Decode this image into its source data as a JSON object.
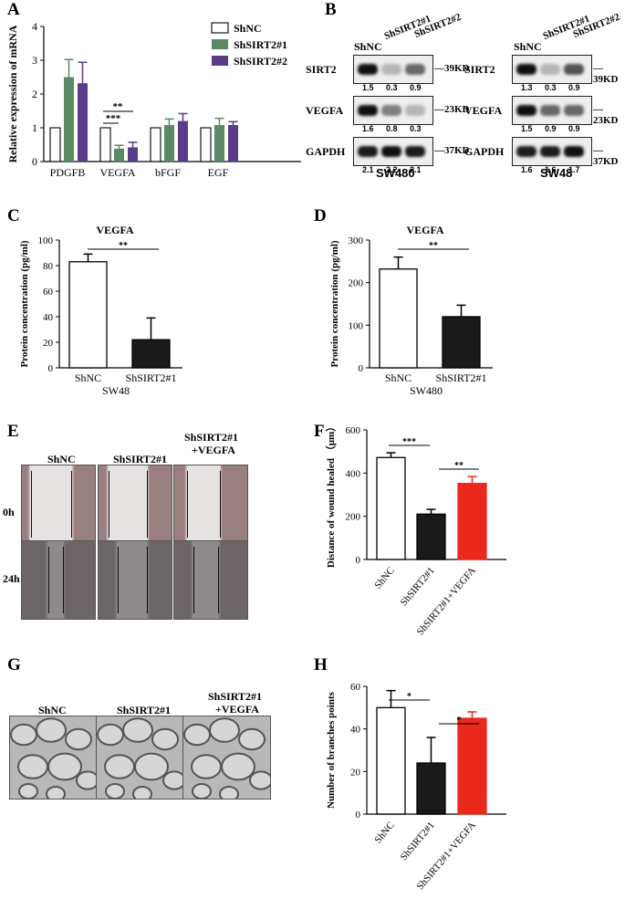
{
  "panels": {
    "A": "A",
    "B": "B",
    "C": "C",
    "D": "D",
    "E": "E",
    "F": "F",
    "G": "G",
    "H": "H"
  },
  "colors": {
    "shnc": "#ffffff",
    "sh1": "#5a8a62",
    "sh2": "#5a3c8a",
    "black": "#1a1a1a",
    "red": "#e8291c"
  },
  "chart_data": [
    {
      "id": "A",
      "type": "bar",
      "ylabel": "Relative expression of mRNA",
      "ylim": [
        0,
        4
      ],
      "yticks": [
        0,
        1,
        2,
        3,
        4
      ],
      "categories": [
        "PDGFB",
        "VEGFA",
        "bFGF",
        "EGF"
      ],
      "series": [
        {
          "name": "ShNC",
          "values": [
            1.0,
            1.0,
            1.0,
            1.0
          ],
          "err": [
            0,
            0,
            0,
            0
          ]
        },
        {
          "name": "ShSIRT2#1",
          "values": [
            2.5,
            0.38,
            1.08,
            1.08
          ],
          "err": [
            0.52,
            0.1,
            0.18,
            0.2
          ]
        },
        {
          "name": "ShSIRT2#2",
          "values": [
            2.32,
            0.42,
            1.2,
            1.08
          ],
          "err": [
            0.62,
            0.15,
            0.22,
            0.1
          ]
        }
      ],
      "annotations": [
        "**",
        "***"
      ]
    },
    {
      "id": "C",
      "type": "bar",
      "title": "VEGFA",
      "ylabel": "Protein concentration (pg/ml)",
      "xlabel": "SW48",
      "ylim": [
        0,
        100
      ],
      "yticks": [
        0,
        20,
        40,
        60,
        80,
        100
      ],
      "categories": [
        "ShNC",
        "ShSIRT2#1"
      ],
      "values": [
        83,
        22
      ],
      "err": [
        6,
        17
      ],
      "annotation": "**"
    },
    {
      "id": "D",
      "type": "bar",
      "title": "VEGFA",
      "ylabel": "Protein concentration (pg/ml)",
      "xlabel": "SW480",
      "ylim": [
        0,
        300
      ],
      "yticks": [
        0,
        100,
        200,
        300
      ],
      "categories": [
        "ShNC",
        "ShSIRT2#1"
      ],
      "values": [
        232,
        120
      ],
      "err": [
        28,
        27
      ],
      "annotation": "**"
    },
    {
      "id": "F",
      "type": "bar",
      "ylabel": "Distance of wound healed （μm）",
      "ylim": [
        0,
        600
      ],
      "yticks": [
        0,
        200,
        400,
        600
      ],
      "categories": [
        "ShNC",
        "ShSIRT2#1",
        "ShSIRT2#1+VEGFA"
      ],
      "values": [
        472,
        210,
        352
      ],
      "err": [
        22,
        22,
        32
      ],
      "annotations": [
        "***",
        "**"
      ]
    },
    {
      "id": "H",
      "type": "bar",
      "ylabel": "Number of branches points",
      "ylim": [
        0,
        60
      ],
      "yticks": [
        0,
        20,
        40,
        60
      ],
      "categories": [
        "ShNC",
        "ShSIRT2#1",
        "ShSIRT2#1+VEGFA"
      ],
      "values": [
        50,
        24,
        45
      ],
      "err": [
        8,
        12,
        3
      ],
      "annotations": [
        "*",
        "*"
      ]
    }
  ],
  "blots": {
    "SW480": {
      "cell_line": "SW480",
      "lanes": [
        "ShNC",
        "ShSIRT2#1",
        "ShSIRT2#2"
      ],
      "rows": [
        {
          "protein": "SIRT2",
          "size": "39KD",
          "quant": [
            "1.5",
            "0.3",
            "0.9"
          ]
        },
        {
          "protein": "VEGFA",
          "size": "23KD",
          "quant": [
            "1.6",
            "0.8",
            "0.3"
          ]
        },
        {
          "protein": "GAPDH",
          "size": "37KD",
          "quant": [
            "2.1",
            "2.2",
            "2.1"
          ]
        }
      ]
    },
    "SW48": {
      "cell_line": "SW48",
      "lanes": [
        "ShNC",
        "ShSIRT2#1",
        "ShSIRT2#2"
      ],
      "rows": [
        {
          "protein": "SIRT2",
          "size": "39KD",
          "quant": [
            "1.3",
            "0.3",
            "0.9"
          ]
        },
        {
          "protein": "VEGFA",
          "size": "23KD",
          "quant": [
            "1.5",
            "0.9",
            "0.9"
          ]
        },
        {
          "protein": "GAPDH",
          "size": "37KD",
          "quant": [
            "1.6",
            "1.6",
            "1.7"
          ]
        }
      ]
    }
  },
  "wound": {
    "cols": [
      "ShNC",
      "ShSIRT2#1",
      "ShSIRT2#1\n+VEGFA"
    ],
    "col3_line1": "ShSIRT2#1",
    "col3_line2": "+VEGFA",
    "rows": [
      "0h",
      "24h"
    ]
  },
  "tube": {
    "cols": [
      "ShNC",
      "ShSIRT2#1"
    ],
    "col3_line1": "ShSIRT2#1",
    "col3_line2": "+VEGFA"
  }
}
